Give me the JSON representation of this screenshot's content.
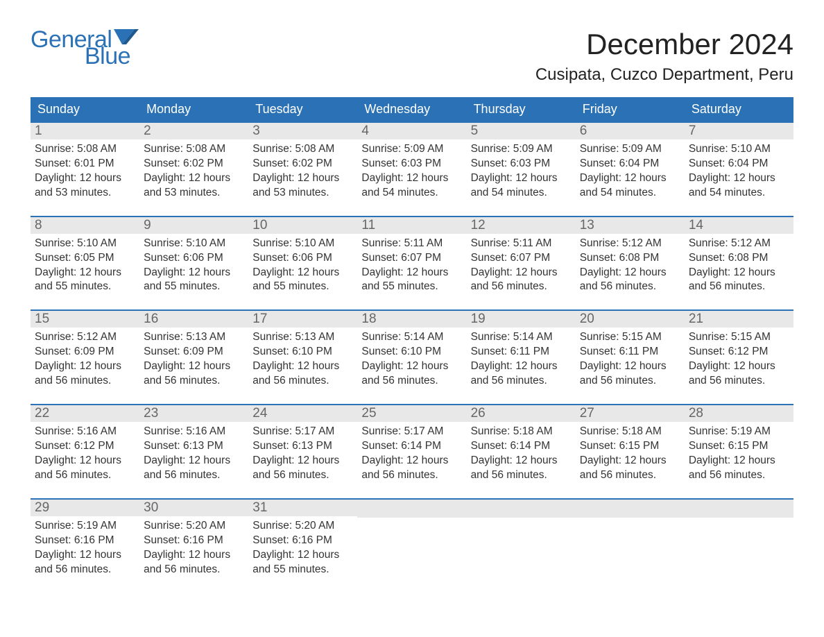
{
  "brand": {
    "part1": "General",
    "part2": "Blue",
    "flag_color": "#2a72b5"
  },
  "title": "December 2024",
  "location": "Cusipata, Cuzco Department, Peru",
  "colors": {
    "header_bg": "#2a72b5",
    "header_text": "#ffffff",
    "daynum_bg": "#e8e8e8",
    "daynum_text": "#666666",
    "body_text": "#333333",
    "row_border": "#2a72b5",
    "page_bg": "#ffffff"
  },
  "typography": {
    "title_fontsize": 42,
    "location_fontsize": 24,
    "dow_fontsize": 18,
    "daynum_fontsize": 19,
    "body_fontsize": 15.5,
    "logo_fontsize": 34
  },
  "daysOfWeek": [
    "Sunday",
    "Monday",
    "Tuesday",
    "Wednesday",
    "Thursday",
    "Friday",
    "Saturday"
  ],
  "weeks": [
    [
      {
        "num": "1",
        "sunrise": "5:08 AM",
        "sunset": "6:01 PM",
        "daylight": "12 hours and 53 minutes."
      },
      {
        "num": "2",
        "sunrise": "5:08 AM",
        "sunset": "6:02 PM",
        "daylight": "12 hours and 53 minutes."
      },
      {
        "num": "3",
        "sunrise": "5:08 AM",
        "sunset": "6:02 PM",
        "daylight": "12 hours and 53 minutes."
      },
      {
        "num": "4",
        "sunrise": "5:09 AM",
        "sunset": "6:03 PM",
        "daylight": "12 hours and 54 minutes."
      },
      {
        "num": "5",
        "sunrise": "5:09 AM",
        "sunset": "6:03 PM",
        "daylight": "12 hours and 54 minutes."
      },
      {
        "num": "6",
        "sunrise": "5:09 AM",
        "sunset": "6:04 PM",
        "daylight": "12 hours and 54 minutes."
      },
      {
        "num": "7",
        "sunrise": "5:10 AM",
        "sunset": "6:04 PM",
        "daylight": "12 hours and 54 minutes."
      }
    ],
    [
      {
        "num": "8",
        "sunrise": "5:10 AM",
        "sunset": "6:05 PM",
        "daylight": "12 hours and 55 minutes."
      },
      {
        "num": "9",
        "sunrise": "5:10 AM",
        "sunset": "6:06 PM",
        "daylight": "12 hours and 55 minutes."
      },
      {
        "num": "10",
        "sunrise": "5:10 AM",
        "sunset": "6:06 PM",
        "daylight": "12 hours and 55 minutes."
      },
      {
        "num": "11",
        "sunrise": "5:11 AM",
        "sunset": "6:07 PM",
        "daylight": "12 hours and 55 minutes."
      },
      {
        "num": "12",
        "sunrise": "5:11 AM",
        "sunset": "6:07 PM",
        "daylight": "12 hours and 56 minutes."
      },
      {
        "num": "13",
        "sunrise": "5:12 AM",
        "sunset": "6:08 PM",
        "daylight": "12 hours and 56 minutes."
      },
      {
        "num": "14",
        "sunrise": "5:12 AM",
        "sunset": "6:08 PM",
        "daylight": "12 hours and 56 minutes."
      }
    ],
    [
      {
        "num": "15",
        "sunrise": "5:12 AM",
        "sunset": "6:09 PM",
        "daylight": "12 hours and 56 minutes."
      },
      {
        "num": "16",
        "sunrise": "5:13 AM",
        "sunset": "6:09 PM",
        "daylight": "12 hours and 56 minutes."
      },
      {
        "num": "17",
        "sunrise": "5:13 AM",
        "sunset": "6:10 PM",
        "daylight": "12 hours and 56 minutes."
      },
      {
        "num": "18",
        "sunrise": "5:14 AM",
        "sunset": "6:10 PM",
        "daylight": "12 hours and 56 minutes."
      },
      {
        "num": "19",
        "sunrise": "5:14 AM",
        "sunset": "6:11 PM",
        "daylight": "12 hours and 56 minutes."
      },
      {
        "num": "20",
        "sunrise": "5:15 AM",
        "sunset": "6:11 PM",
        "daylight": "12 hours and 56 minutes."
      },
      {
        "num": "21",
        "sunrise": "5:15 AM",
        "sunset": "6:12 PM",
        "daylight": "12 hours and 56 minutes."
      }
    ],
    [
      {
        "num": "22",
        "sunrise": "5:16 AM",
        "sunset": "6:12 PM",
        "daylight": "12 hours and 56 minutes."
      },
      {
        "num": "23",
        "sunrise": "5:16 AM",
        "sunset": "6:13 PM",
        "daylight": "12 hours and 56 minutes."
      },
      {
        "num": "24",
        "sunrise": "5:17 AM",
        "sunset": "6:13 PM",
        "daylight": "12 hours and 56 minutes."
      },
      {
        "num": "25",
        "sunrise": "5:17 AM",
        "sunset": "6:14 PM",
        "daylight": "12 hours and 56 minutes."
      },
      {
        "num": "26",
        "sunrise": "5:18 AM",
        "sunset": "6:14 PM",
        "daylight": "12 hours and 56 minutes."
      },
      {
        "num": "27",
        "sunrise": "5:18 AM",
        "sunset": "6:15 PM",
        "daylight": "12 hours and 56 minutes."
      },
      {
        "num": "28",
        "sunrise": "5:19 AM",
        "sunset": "6:15 PM",
        "daylight": "12 hours and 56 minutes."
      }
    ],
    [
      {
        "num": "29",
        "sunrise": "5:19 AM",
        "sunset": "6:16 PM",
        "daylight": "12 hours and 56 minutes."
      },
      {
        "num": "30",
        "sunrise": "5:20 AM",
        "sunset": "6:16 PM",
        "daylight": "12 hours and 56 minutes."
      },
      {
        "num": "31",
        "sunrise": "5:20 AM",
        "sunset": "6:16 PM",
        "daylight": "12 hours and 55 minutes."
      },
      {
        "empty": true
      },
      {
        "empty": true
      },
      {
        "empty": true
      },
      {
        "empty": true
      }
    ]
  ],
  "labels": {
    "sunrise": "Sunrise: ",
    "sunset": "Sunset: ",
    "daylight": "Daylight: "
  }
}
